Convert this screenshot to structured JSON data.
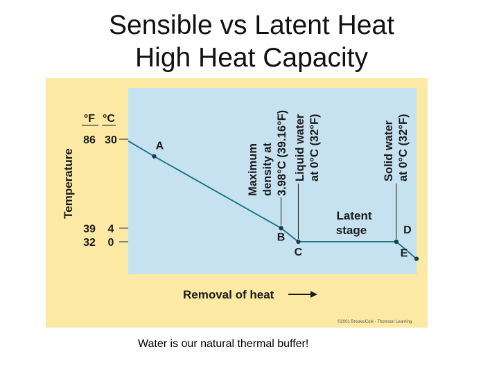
{
  "slide": {
    "title_line1": "Sensible vs Latent Heat",
    "title_line2": "High Heat Capacity",
    "caption": "Water is our natural thermal buffer!",
    "credit": "©2001 Brooks/Cole - Thomson Learning"
  },
  "colors": {
    "figure_bg": "#fbe9a4",
    "plot_bg": "#c6e2f1",
    "line": "#1e7a86",
    "dot": "#1f3f46"
  },
  "chart_data": {
    "type": "line",
    "title": "",
    "ylabel": "Temperature",
    "xlabel": "Removal of heat",
    "y_units": [
      "°F",
      "°C"
    ],
    "y_ticks": [
      {
        "f": "86",
        "c": "30",
        "value": 30
      },
      {
        "f": "39",
        "c": "4",
        "value": 4
      },
      {
        "f": "32",
        "c": "0",
        "value": 0
      }
    ],
    "ylim_c": [
      -5.5,
      33.5
    ],
    "xlim": [
      0,
      100
    ],
    "points": [
      {
        "label": "A",
        "x": 9,
        "y": 25
      },
      {
        "label": "B",
        "x": 53,
        "y": 4
      },
      {
        "label": "C",
        "x": 59,
        "y": 0
      },
      {
        "label": "D",
        "x": 93,
        "y": 0
      },
      {
        "label": "E",
        "x": 100,
        "y": -5
      }
    ],
    "line_start": {
      "x": 0,
      "y": 29.5
    },
    "annotations": [
      {
        "id": "max-density",
        "lines": [
          "Maximum",
          "density at",
          "3.98°C (39.16°F)"
        ],
        "anchor": "B"
      },
      {
        "id": "liquid-water",
        "lines": [
          "Liquid water",
          "at 0°C (32°F)"
        ],
        "anchor": "C"
      },
      {
        "id": "solid-water",
        "lines": [
          "Solid water",
          "at 0°C (32°F)"
        ],
        "anchor": "D"
      },
      {
        "id": "latent-stage",
        "lines": [
          "Latent",
          "stage"
        ]
      }
    ]
  }
}
